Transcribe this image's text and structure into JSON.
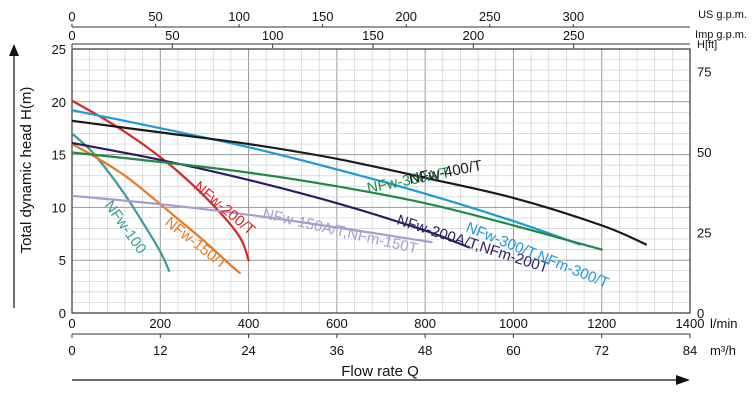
{
  "chart_data": {
    "type": "line",
    "title": "",
    "ylabel": "Total dynamic head H(m)",
    "ylabel_right": "H[ft]",
    "xlabel": "Flow rate Q",
    "xlim": [
      0,
      1400
    ],
    "ylim": [
      0,
      25
    ],
    "grid": true,
    "x_axes": [
      {
        "name": "l/min",
        "unit_label": "l/min",
        "ticks": [
          0,
          200,
          400,
          600,
          800,
          1000,
          1200,
          1400
        ],
        "per_lmin": 1
      },
      {
        "name": "m3/h",
        "unit_label": "m³/h",
        "ticks": [
          0,
          12,
          24,
          36,
          48,
          60,
          72,
          84
        ],
        "per_lmin": 0.06
      },
      {
        "name": "US g.p.m.",
        "unit_label": "US g.p.m.",
        "ticks": [
          0,
          50,
          100,
          150,
          200,
          250,
          300
        ],
        "per_lmin": 0.264172
      },
      {
        "name": "Imp g.p.m.",
        "unit_label": "Imp g.p.m.",
        "ticks": [
          0,
          50,
          100,
          150,
          200,
          250
        ],
        "per_lmin": 0.219969
      }
    ],
    "y_axes": [
      {
        "name": "m",
        "ticks": [
          0,
          5,
          10,
          15,
          20,
          25
        ],
        "per_m": 1
      },
      {
        "name": "ft",
        "ticks": [
          0,
          25,
          50,
          75
        ],
        "per_m": 3.28084
      }
    ],
    "series": [
      {
        "name": "NFw-100",
        "color": "#3a9a9a",
        "points": [
          [
            0,
            17.0
          ],
          [
            40,
            15.5
          ],
          [
            80,
            13.5
          ],
          [
            120,
            11.2
          ],
          [
            160,
            8.6
          ],
          [
            200,
            5.8
          ],
          [
            220,
            4.0
          ]
        ]
      },
      {
        "name": "NFw-150/T",
        "color": "#e87820",
        "points": [
          [
            0,
            16.0
          ],
          [
            60,
            14.6
          ],
          [
            120,
            13.0
          ],
          [
            180,
            11.0
          ],
          [
            240,
            8.9
          ],
          [
            300,
            6.8
          ],
          [
            360,
            4.5
          ],
          [
            380,
            3.8
          ]
        ]
      },
      {
        "name": "NFw-200/T",
        "color": "#d8262a",
        "points": [
          [
            0,
            20.1
          ],
          [
            80,
            18.2
          ],
          [
            160,
            16.0
          ],
          [
            240,
            13.4
          ],
          [
            320,
            10.2
          ],
          [
            380,
            7.2
          ],
          [
            400,
            5.0
          ]
        ]
      },
      {
        "name": "NFw-150A/T,NFm-150T",
        "color": "#a89ccf",
        "points": [
          [
            0,
            11.1
          ],
          [
            200,
            10.3
          ],
          [
            400,
            9.3
          ],
          [
            600,
            8.1
          ],
          [
            800,
            6.8
          ],
          [
            800,
            6.8
          ]
        ]
      },
      {
        "name": "NFw-200A/T,NFm-200T",
        "color": "#2c1d60",
        "points": [
          [
            0,
            16.1
          ],
          [
            200,
            14.5
          ],
          [
            400,
            12.6
          ],
          [
            600,
            10.4
          ],
          [
            800,
            7.8
          ],
          [
            900,
            6.2
          ]
        ]
      },
      {
        "name": "NFw-300/T,NFm-300/T",
        "color": "#1f9ad6",
        "points": [
          [
            0,
            19.2
          ],
          [
            200,
            17.5
          ],
          [
            400,
            15.7
          ],
          [
            600,
            13.6
          ],
          [
            800,
            11.3
          ],
          [
            1000,
            8.7
          ],
          [
            1150,
            6.5
          ]
        ]
      },
      {
        "name": "NFw-300A/T",
        "color": "#1e8a4a",
        "points": [
          [
            0,
            15.2
          ],
          [
            200,
            14.3
          ],
          [
            400,
            13.3
          ],
          [
            600,
            12.0
          ],
          [
            800,
            10.4
          ],
          [
            1000,
            8.3
          ],
          [
            1200,
            6.0
          ]
        ]
      },
      {
        "name": "NFw-400/T",
        "color": "#1a1a1a",
        "points": [
          [
            0,
            18.2
          ],
          [
            200,
            17.1
          ],
          [
            400,
            16.0
          ],
          [
            600,
            14.6
          ],
          [
            800,
            12.8
          ],
          [
            1000,
            10.9
          ],
          [
            1200,
            8.3
          ],
          [
            1300,
            6.5
          ]
        ]
      }
    ],
    "annotations": [
      {
        "text": "NFw-100",
        "series": "NFw-100"
      },
      {
        "text": "NFw-150/T",
        "series": "NFw-150/T"
      },
      {
        "text": "NFw-200/T",
        "series": "NFw-200/T"
      },
      {
        "text": "NFw-150A/T,NFm-150T",
        "series": "NFw-150A/T,NFm-150T"
      },
      {
        "text": "NFw-200A/T,NFm-200T",
        "series": "NFw-200A/T,NFm-200T"
      },
      {
        "text": "NFw-300/T,NFm-300/T",
        "series": "NFw-300/T,NFm-300/T"
      },
      {
        "text": "NFw-300A/T",
        "series": "NFw-300A/T"
      },
      {
        "text": "NFw-400/T",
        "series": "NFw-400/T"
      }
    ]
  }
}
